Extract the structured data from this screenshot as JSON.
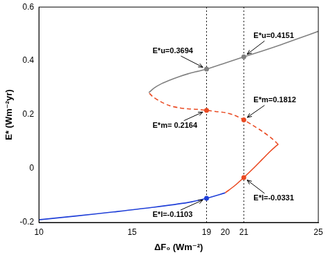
{
  "chart_data": {
    "type": "line",
    "x_label": "ΔF₀ (Wm⁻²)",
    "y_label": "E* (Wm⁻²yr)",
    "xlim": [
      10,
      25
    ],
    "xticks": [
      10,
      15,
      19,
      20,
      21,
      25
    ],
    "ylim": [
      -0.2,
      0.6
    ],
    "yticks": [
      -0.2,
      0,
      0.2,
      0.4,
      0.6
    ],
    "grid": false,
    "series": [
      {
        "color": "#1f3fd8",
        "line_style": "solid",
        "x": [
          10,
          12,
          14,
          16,
          18,
          19,
          20
        ],
        "values": [
          -0.19,
          -0.176,
          -0.161,
          -0.145,
          -0.126,
          -0.1103,
          -0.09
        ]
      },
      {
        "color": "#ea4a22",
        "line_style": "solid",
        "x": [
          20,
          20.5,
          21,
          21.5,
          22,
          22.4,
          22.7,
          22.85
        ],
        "values": [
          -0.09,
          -0.064,
          -0.0331,
          0.0,
          0.035,
          0.063,
          0.082,
          0.09
        ]
      },
      {
        "color": "#ea4a22",
        "line_style": "dashed",
        "x": [
          22.85,
          22.5,
          22,
          21.5,
          21,
          20.5,
          20,
          19.5,
          19,
          18.5,
          18,
          17.5,
          17,
          16.5,
          16.1,
          15.9
        ],
        "values": [
          0.09,
          0.112,
          0.138,
          0.16,
          0.1812,
          0.198,
          0.208,
          0.212,
          0.2164,
          0.22,
          0.222,
          0.226,
          0.234,
          0.25,
          0.268,
          0.282
        ]
      },
      {
        "color": "#808080",
        "line_style": "solid",
        "x": [
          15.9,
          16.2,
          16.6,
          17,
          17.5,
          18,
          18.5,
          19,
          20,
          21,
          22,
          23,
          24,
          25
        ],
        "values": [
          0.282,
          0.3,
          0.316,
          0.328,
          0.341,
          0.352,
          0.361,
          0.3694,
          0.392,
          0.4151,
          0.437,
          0.46,
          0.485,
          0.51
        ]
      }
    ],
    "vlines": [
      19,
      21
    ],
    "annotations": [
      {
        "text": "E*u=0.3694",
        "x": 19,
        "y": 0.3694,
        "color": "#808080"
      },
      {
        "text": "E*m= 0.2164",
        "x": 19,
        "y": 0.2164,
        "color": "#ea4a22"
      },
      {
        "text": "E*l=-0.1103",
        "x": 19,
        "y": -0.1103,
        "color": "#1f3fd8"
      },
      {
        "text": "E*u=0.4151",
        "x": 21,
        "y": 0.4151,
        "color": "#808080"
      },
      {
        "text": "E*m=0.1812",
        "x": 21,
        "y": 0.1812,
        "color": "#ea4a22"
      },
      {
        "text": "E*l=-0.0331",
        "x": 21,
        "y": -0.0331,
        "color": "#ea4a22"
      }
    ]
  }
}
